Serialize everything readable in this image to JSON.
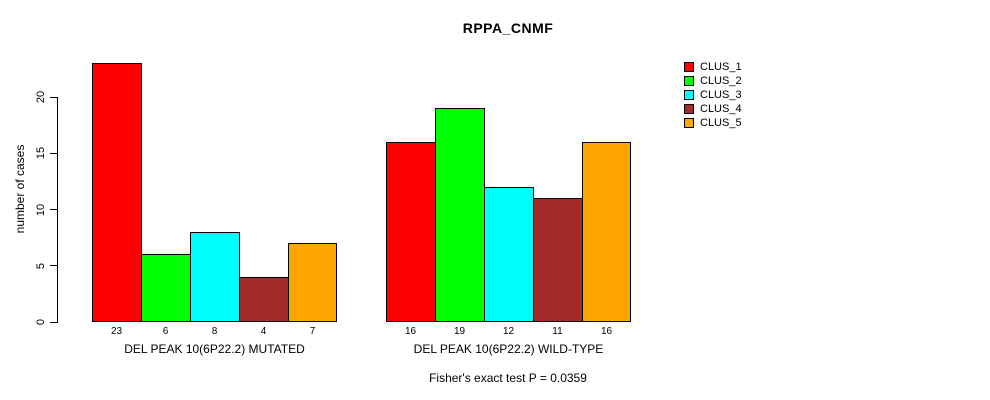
{
  "title": "RPPA_CNMF",
  "chart_data": {
    "type": "bar",
    "title": "RPPA_CNMF",
    "xlabel": "",
    "ylabel": "number of cases",
    "ylim": [
      0,
      23
    ],
    "yticks": [
      0,
      5,
      10,
      15,
      20
    ],
    "grid": false,
    "bar_value_labels": true,
    "groups": [
      {
        "label": "DEL PEAK 10(6P22.2) MUTATED",
        "values": [
          23,
          6,
          8,
          4,
          7
        ]
      },
      {
        "label": "DEL PEAK 10(6P22.2) WILD-TYPE",
        "values": [
          16,
          19,
          12,
          11,
          16
        ]
      }
    ],
    "series_colors": [
      "#ff0000",
      "#00ff00",
      "#00ffff",
      "#a52a2a",
      "#ffa500"
    ],
    "legend": {
      "position": "top-right",
      "entries": [
        "CLUS_1",
        "CLUS_2",
        "CLUS_3",
        "CLUS_4",
        "CLUS_5"
      ]
    },
    "annotation": "Fisher's exact test P = 0.0359"
  }
}
